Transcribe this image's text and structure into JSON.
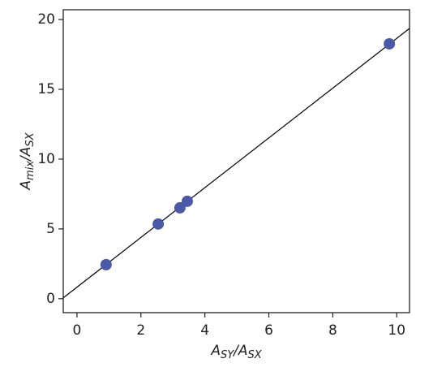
{
  "chart_data": {
    "type": "scatter",
    "x": [
      0.91,
      2.54,
      3.22,
      3.45,
      9.77
    ],
    "values": [
      2.44,
      5.35,
      6.51,
      6.98,
      18.26
    ],
    "color": "#4a5aa8",
    "fit_line": {
      "x": [
        -0.43,
        10.4
      ],
      "y": [
        0.06,
        19.36
      ],
      "color": "#000000"
    },
    "xlim": [
      -0.43,
      10.4
    ],
    "ylim": [
      -1.0,
      20.7
    ],
    "xticks": [
      0,
      2,
      4,
      6,
      8,
      10
    ],
    "yticks": [
      0,
      5,
      10,
      15,
      20
    ],
    "grid": false,
    "xlabel": [
      {
        "text": "A"
      },
      {
        "text": "SY",
        "sub": true
      },
      {
        "text": "/A"
      },
      {
        "text": "SX",
        "sub": true
      }
    ],
    "ylabel": [
      {
        "text": "A"
      },
      {
        "text": "mix",
        "sub": true
      },
      {
        "text": "/A"
      },
      {
        "text": "SX",
        "sub": true
      }
    ]
  }
}
